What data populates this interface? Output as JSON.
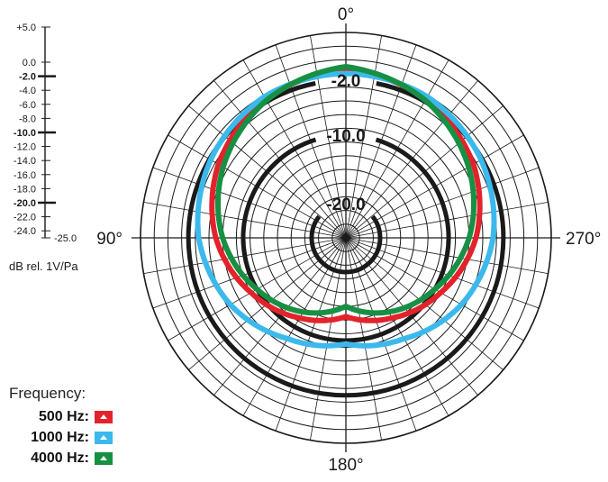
{
  "chart_data": {
    "type": "polar",
    "angle_labels": [
      "0°",
      "90°",
      "180°",
      "270°"
    ],
    "ring_labels": [
      "-2.0",
      "-10.0",
      "-20.0"
    ],
    "scale": {
      "ticks": [
        "+5.0",
        "0.0",
        "-2.0",
        "-4.0",
        "-6.0",
        "-8.0",
        "-10.0",
        "-12.0",
        "-14.0",
        "-16.0",
        "-18.0",
        "-20.0",
        "-22.0",
        "-24.0",
        "-25.0"
      ],
      "values": [
        5,
        0,
        -2,
        -4,
        -6,
        -8,
        -10,
        -12,
        -14,
        -16,
        -18,
        -20,
        -22,
        -24,
        -25
      ],
      "bold_ticks": [
        -2,
        -10,
        -20
      ],
      "range": [
        -25,
        5
      ],
      "unit": "dB rel. 1V/Pa"
    },
    "bold_rings_db": [
      -2,
      -10,
      -20
    ],
    "angles_deg": [
      0,
      30,
      60,
      90,
      120,
      150,
      180
    ],
    "series": [
      {
        "name": "500 Hz",
        "color": "#e3232c",
        "values_db": [
          -0.5,
          -1.6,
          -3.5,
          -6.0,
          -9.0,
          -11.5,
          -13.5
        ]
      },
      {
        "name": "1000 Hz",
        "color": "#3bb9ec",
        "values_db": [
          -1.0,
          -1.2,
          -2.2,
          -3.5,
          -5.5,
          -8.0,
          -9.5
        ]
      },
      {
        "name": "4000 Hz",
        "color": "#179043",
        "values_db": [
          0.0,
          -1.8,
          -4.3,
          -7.0,
          -10.0,
          -12.5,
          -15.0
        ]
      }
    ],
    "legend": {
      "title": "Frequency:",
      "placement": "bottom-left"
    }
  }
}
